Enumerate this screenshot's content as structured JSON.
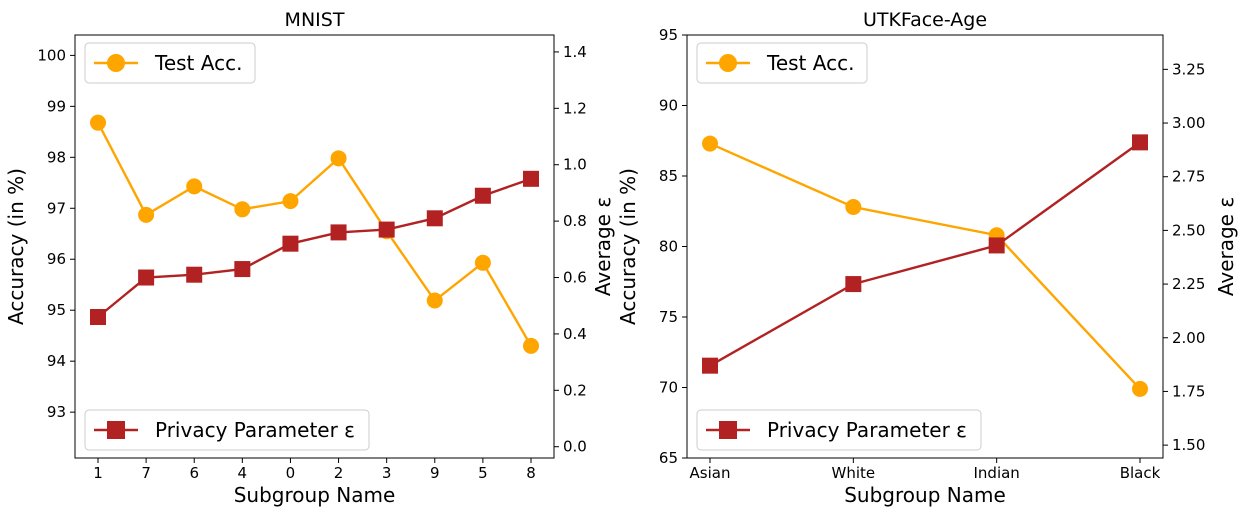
{
  "colors": {
    "accuracy": "#FFA500",
    "epsilon": "#B22222"
  },
  "chart_data": [
    {
      "type": "line",
      "title": "MNIST",
      "xlabel": "Subgroup Name",
      "ylabel": "Accuracy (in %)",
      "y2label": "Average ε",
      "categories": [
        "1",
        "7",
        "6",
        "4",
        "0",
        "2",
        "3",
        "9",
        "5",
        "8"
      ],
      "ylim": [
        92.1,
        100.4
      ],
      "yticks": [
        93,
        94,
        95,
        96,
        97,
        98,
        99,
        100
      ],
      "y2lim": [
        -0.04,
        1.46
      ],
      "y2ticks": [
        0.0,
        0.2,
        0.4,
        0.6,
        0.8,
        1.0,
        1.2,
        1.4
      ],
      "y2tick_labels": [
        "0.0",
        "0.2",
        "0.4",
        "0.6",
        "0.8",
        "1.0",
        "1.2",
        "1.4"
      ],
      "series": [
        {
          "name": "Test Acc.",
          "axis": "left",
          "marker": "circle",
          "values": [
            98.68,
            96.87,
            97.43,
            96.98,
            97.14,
            97.98,
            96.55,
            95.19,
            95.93,
            94.3
          ]
        },
        {
          "name": "Privacy Parameter ε",
          "axis": "right",
          "marker": "square",
          "values": [
            0.46,
            0.6,
            0.61,
            0.63,
            0.72,
            0.76,
            0.77,
            0.81,
            0.89,
            0.95
          ]
        }
      ],
      "legends": [
        {
          "series": 0,
          "placement": "upper left"
        },
        {
          "series": 1,
          "placement": "lower left"
        }
      ]
    },
    {
      "type": "line",
      "title": "UTKFace-Age",
      "xlabel": "Subgroup Name",
      "ylabel": "Accuracy (in %)",
      "y2label": "Average ε",
      "categories": [
        "Asian",
        "White",
        "Indian",
        "Black"
      ],
      "ylim": [
        65,
        95
      ],
      "yticks": [
        65,
        70,
        75,
        80,
        85,
        90,
        95
      ],
      "y2lim": [
        1.44,
        3.41
      ],
      "y2ticks": [
        1.5,
        1.75,
        2.0,
        2.25,
        2.5,
        2.75,
        3.0,
        3.25
      ],
      "y2tick_labels": [
        "1.50",
        "1.75",
        "2.00",
        "2.25",
        "2.50",
        "2.75",
        "3.00",
        "3.25"
      ],
      "series": [
        {
          "name": "Test Acc.",
          "axis": "left",
          "marker": "circle",
          "values": [
            87.3,
            82.8,
            80.8,
            69.9
          ]
        },
        {
          "name": "Privacy Parameter ε",
          "axis": "right",
          "marker": "square",
          "values": [
            1.87,
            2.25,
            2.43,
            2.91
          ]
        }
      ],
      "legends": [
        {
          "series": 0,
          "placement": "upper left"
        },
        {
          "series": 1,
          "placement": "lower left"
        }
      ]
    }
  ]
}
